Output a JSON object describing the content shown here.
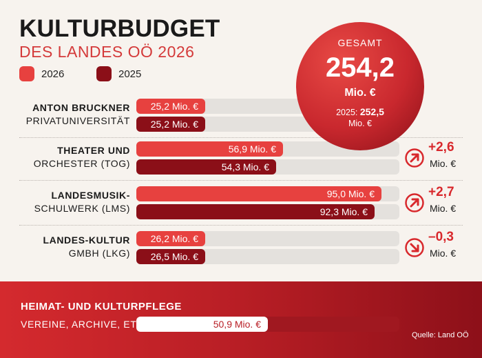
{
  "header": {
    "title": "KULTURBUDGET",
    "subtitle": "DES LANDES OÖ 2026"
  },
  "legend": [
    {
      "label": "2026",
      "color": "#e7413f"
    },
    {
      "label": "2025",
      "color": "#8b0f18"
    }
  ],
  "total": {
    "label": "GESAMT",
    "value": "254,2",
    "unit": "Mio. €",
    "prev_label": "2025:",
    "prev_value": "252,5",
    "prev_unit": "Mio. €"
  },
  "chart_data": {
    "type": "bar",
    "orientation": "horizontal",
    "unit": "Mio. €",
    "categories": [
      {
        "line1": "ANTON BRUCKNER",
        "line2": "PRIVATUNIVERSITÄT"
      },
      {
        "line1": "THEATER UND",
        "line2": "ORCHESTER (TOG)"
      },
      {
        "line1": "LANDESMUSIK-",
        "line2": "SCHULWERK (LMS)"
      },
      {
        "line1": "LANDES-KULTUR",
        "line2": "GMBH (LKG)"
      }
    ],
    "series": [
      {
        "name": "2026",
        "values": [
          25.2,
          56.9,
          95.0,
          26.2
        ],
        "labels": [
          "25,2 Mio. €",
          "56,9 Mio. €",
          "95,0 Mio. €",
          "26,2 Mio. €"
        ]
      },
      {
        "name": "2025",
        "values": [
          25.2,
          54.3,
          92.3,
          26.5
        ],
        "labels": [
          "25,2 Mio. €",
          "54,3 Mio. €",
          "92,3 Mio. €",
          "26,5 Mio. €"
        ]
      }
    ],
    "changes": [
      null,
      {
        "value": "+2,6",
        "unit": "Mio. €",
        "direction": "up"
      },
      {
        "value": "+2,7",
        "unit": "Mio. €",
        "direction": "up"
      },
      {
        "value": "–0,3",
        "unit": "Mio. €",
        "direction": "down"
      }
    ],
    "xlim": [
      0,
      102
    ],
    "extra": {
      "section_title": "HEIMAT- UND KULTURPFLEGE",
      "category": "VEREINE, ARCHIVE, ETC.",
      "value": 50.9,
      "label": "50,9 Mio. €"
    }
  },
  "source": "Quelle: Land OÖ",
  "colors": {
    "accent": "#d8282c",
    "dark_red": "#8b0f18",
    "track": "#e4e1dd"
  }
}
